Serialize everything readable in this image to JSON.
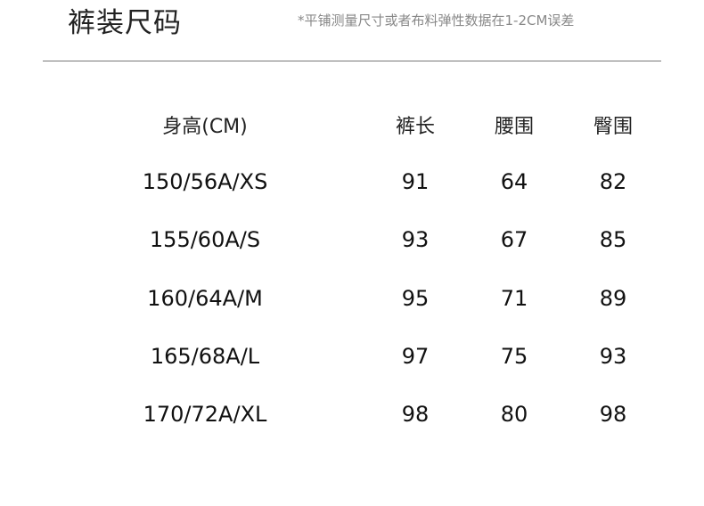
{
  "title": "裤装尺码",
  "note": "*平铺测量尺寸或者布料弹性数据在1-2CM误差",
  "table": {
    "headers": [
      "身高(CM)",
      "裤长",
      "腰围",
      "臀围"
    ],
    "rows": [
      [
        "150/56A/XS",
        "91",
        "64",
        "82"
      ],
      [
        "155/60A/S",
        "93",
        "67",
        "85"
      ],
      [
        "160/64A/M",
        "95",
        "71",
        "89"
      ],
      [
        "165/68A/L",
        "97",
        "75",
        "93"
      ],
      [
        "170/72A/XL",
        "98",
        "80",
        "98"
      ]
    ]
  }
}
